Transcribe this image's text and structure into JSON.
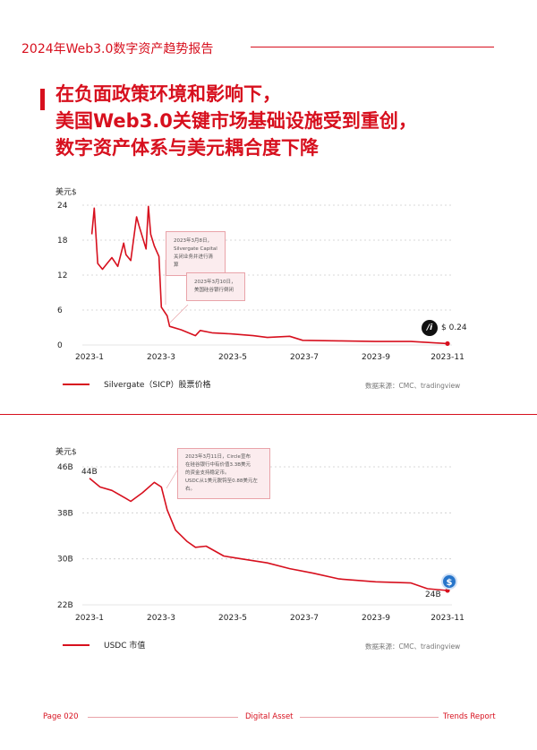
{
  "header": {
    "title": "2024年Web3.0数字资产趋势报告"
  },
  "headline": [
    "在负面政策环境和影响下，",
    "美国Web3.0关键市场基础设施受到重创，",
    "数字资产体系与美元耦合度下降"
  ],
  "colors": {
    "accent": "#d7101e",
    "callout_bg": "#fbecee"
  },
  "chart_data": [
    {
      "type": "line",
      "ylabel": "美元$",
      "yticks": [
        "24",
        "18",
        "12",
        "6",
        "0"
      ],
      "ylim": [
        0,
        24
      ],
      "xticks": [
        "2023-1",
        "2023-3",
        "2023-5",
        "2023-7",
        "2023-9",
        "2023-11"
      ],
      "series": [
        {
          "name": "Silvergate（SICP）股票价格",
          "points": [
            [
              "2023-01-03",
              19
            ],
            [
              "2023-01-05",
              23.5
            ],
            [
              "2023-01-08",
              14
            ],
            [
              "2023-01-12",
              13
            ],
            [
              "2023-01-16",
              14
            ],
            [
              "2023-01-20",
              15
            ],
            [
              "2023-01-25",
              13.5
            ],
            [
              "2023-01-30",
              17.5
            ],
            [
              "2023-02-01",
              15.5
            ],
            [
              "2023-02-05",
              14.5
            ],
            [
              "2023-02-10",
              22
            ],
            [
              "2023-02-12",
              20.5
            ],
            [
              "2023-02-18",
              16.5
            ],
            [
              "2023-02-20",
              23.8
            ],
            [
              "2023-02-22",
              19
            ],
            [
              "2023-02-25",
              17
            ],
            [
              "2023-03-01",
              15.2
            ],
            [
              "2023-03-03",
              6.5
            ],
            [
              "2023-03-08",
              5
            ],
            [
              "2023-03-10",
              3.2
            ],
            [
              "2023-03-20",
              2.6
            ],
            [
              "2023-04-01",
              1.6
            ],
            [
              "2023-04-05",
              2.5
            ],
            [
              "2023-04-15",
              2.1
            ],
            [
              "2023-05-01",
              1.9
            ],
            [
              "2023-05-20",
              1.6
            ],
            [
              "2023-06-01",
              1.3
            ],
            [
              "2023-06-20",
              1.5
            ],
            [
              "2023-07-01",
              0.8
            ],
            [
              "2023-08-01",
              0.7
            ],
            [
              "2023-09-01",
              0.6
            ],
            [
              "2023-10-01",
              0.6
            ],
            [
              "2023-11-01",
              0.24
            ]
          ]
        }
      ],
      "end_label": "$ 0.24",
      "annotations": [
        "2023年3月8日，Silvergate Capital 关闭业务并进行清算",
        "2023年3月10日，美国硅谷银行倒闭"
      ],
      "legend": "Silvergate（SICP）股票价格",
      "source": "数据来源：CMC、tradingview"
    },
    {
      "type": "line",
      "ylabel": "美元$",
      "yticks": [
        "46B",
        "38B",
        "30B",
        "22B"
      ],
      "ylim": [
        22,
        46
      ],
      "xticks": [
        "2023-1",
        "2023-3",
        "2023-5",
        "2023-7",
        "2023-9",
        "2023-11"
      ],
      "series": [
        {
          "name": "USDC 市值",
          "points": [
            [
              "2023-01-01",
              44
            ],
            [
              "2023-01-10",
              42.5
            ],
            [
              "2023-01-20",
              41.9
            ],
            [
              "2023-02-01",
              40.5
            ],
            [
              "2023-02-05",
              40
            ],
            [
              "2023-02-15",
              41.5
            ],
            [
              "2023-02-25",
              43.3
            ],
            [
              "2023-03-03",
              42.5
            ],
            [
              "2023-03-08",
              38.5
            ],
            [
              "2023-03-15",
              35
            ],
            [
              "2023-03-25",
              33
            ],
            [
              "2023-04-01",
              32
            ],
            [
              "2023-04-10",
              32.2
            ],
            [
              "2023-04-25",
              30.5
            ],
            [
              "2023-05-10",
              30
            ],
            [
              "2023-06-01",
              29.3
            ],
            [
              "2023-06-20",
              28.3
            ],
            [
              "2023-07-10",
              27.5
            ],
            [
              "2023-08-01",
              26.5
            ],
            [
              "2023-09-01",
              26
            ],
            [
              "2023-10-01",
              25.8
            ],
            [
              "2023-10-15",
              24.8
            ],
            [
              "2023-11-01",
              24.5
            ]
          ]
        }
      ],
      "start_label": "44B",
      "end_label": "24B",
      "annotations": [
        "2023年3月11日，Circle宣布",
        "在硅谷银行中有价值3.3B美元",
        "的资金支持稳定币。",
        "USDC从1美元脱钩至0.88美元左右。"
      ],
      "legend": "USDC 市值",
      "source": "数据来源：CMC、tradingview"
    }
  ],
  "footer": {
    "page": "Page 020",
    "center": "Digital Asset",
    "right": "Trends Report"
  }
}
